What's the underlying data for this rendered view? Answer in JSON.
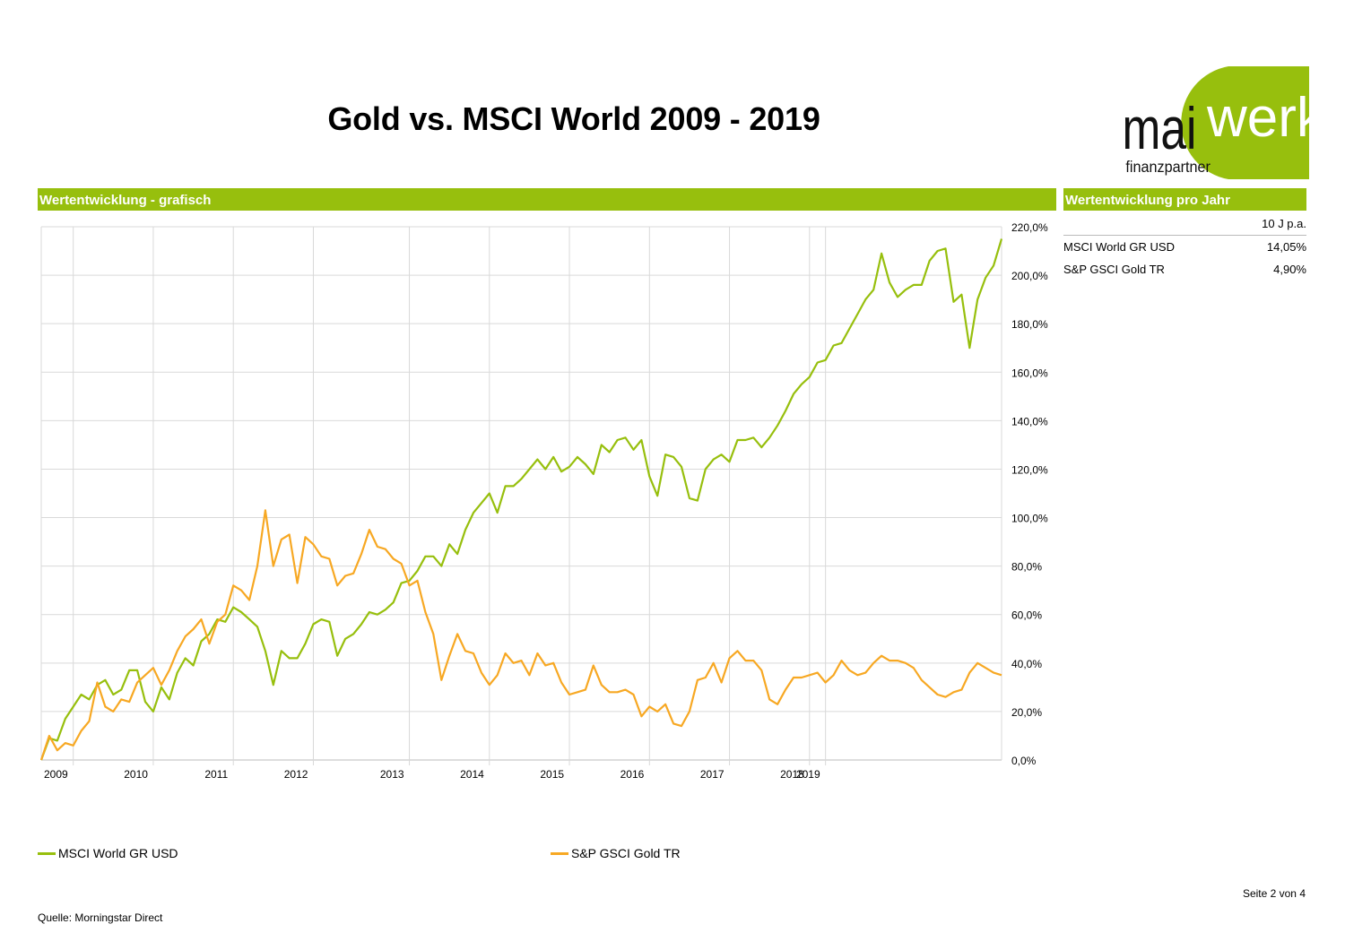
{
  "title": "Gold vs. MSCI World 2009 - 2019",
  "logo": {
    "part1": "mai",
    "part2": "werk",
    "tagline": "finanzpartner",
    "accent": "#97bf0d",
    "text_color": "#111111"
  },
  "section_left": "Wertentwicklung - grafisch",
  "section_right": "Wertentwicklung pro Jahr",
  "perf_table": {
    "column_header": "10 J p.a.",
    "rows": [
      {
        "name": "MSCI World GR USD",
        "value": "14,05%"
      },
      {
        "name": "S&P GSCI Gold TR",
        "value": "4,90%"
      }
    ]
  },
  "legend": {
    "msci": "MSCI World GR USD",
    "gold": "S&P GSCI Gold TR"
  },
  "page_number": "Seite 2 von 4",
  "source": "Quelle: Morningstar Direct",
  "colors": {
    "msci": "#97bf0d",
    "gold": "#f7a823",
    "grid": "#d9d9d9",
    "bar": "#97bf0d"
  },
  "chart_data": {
    "type": "line",
    "x_unit": "month index from 2009-02 (0) to 2019-05 (123)",
    "x_start": "2009-02",
    "x_end": "2019-05",
    "year_ticks": [
      {
        "label": "2009",
        "x": 4
      },
      {
        "label": "2010",
        "x": 14
      },
      {
        "label": "2011",
        "x": 24
      },
      {
        "label": "2012",
        "x": 34
      },
      {
        "label": "2013",
        "x": 46
      },
      {
        "label": "2014",
        "x": 56
      },
      {
        "label": "2015",
        "x": 66
      },
      {
        "label": "2016",
        "x": 76
      },
      {
        "label": "2017",
        "x": 86
      },
      {
        "label": "2018",
        "x": 96
      },
      {
        "label": "2019",
        "x": 98
      }
    ],
    "ylim": [
      0,
      220
    ],
    "y_ticks": [
      "0,0%",
      "20,0%",
      "40,0%",
      "60,0%",
      "80,0%",
      "100,0%",
      "120,0%",
      "140,0%",
      "160,0%",
      "180,0%",
      "200,0%",
      "220,0%"
    ],
    "grid": true,
    "legend_position": "bottom",
    "series": [
      {
        "name": "MSCI World GR USD",
        "values": [
          0,
          9,
          8,
          17,
          22,
          27,
          25,
          31,
          33,
          27,
          29,
          37,
          37,
          24,
          20,
          30,
          25,
          36,
          42,
          39,
          49,
          52,
          58,
          57,
          63,
          61,
          58,
          55,
          45,
          31,
          45,
          42,
          42,
          48,
          56,
          58,
          57,
          43,
          50,
          52,
          56,
          61,
          60,
          62,
          65,
          73,
          74,
          78,
          84,
          84,
          80,
          89,
          85,
          95,
          102,
          106,
          110,
          102,
          113,
          113,
          116,
          120,
          124,
          120,
          125,
          119,
          121,
          125,
          122,
          118,
          130,
          127,
          132,
          133,
          128,
          132,
          117,
          109,
          126,
          125,
          121,
          108,
          107,
          120,
          124,
          126,
          123,
          132,
          132,
          133,
          129,
          133,
          138,
          144,
          151,
          155,
          158,
          164,
          165,
          171,
          172,
          178,
          184,
          190,
          194,
          209,
          197,
          191,
          194,
          196,
          196,
          206,
          210,
          211,
          189,
          192,
          170,
          190,
          199,
          204,
          215
        ]
      },
      {
        "name": "S&P GSCI Gold TR",
        "values": [
          0,
          10,
          4,
          7,
          6,
          12,
          16,
          32,
          22,
          20,
          25,
          24,
          32,
          35,
          38,
          31,
          37,
          45,
          51,
          54,
          58,
          48,
          57,
          60,
          72,
          70,
          66,
          80,
          103,
          80,
          91,
          93,
          73,
          92,
          89,
          84,
          83,
          72,
          76,
          77,
          85,
          95,
          88,
          87,
          83,
          81,
          72,
          74,
          61,
          52,
          33,
          43,
          52,
          45,
          44,
          36,
          31,
          35,
          44,
          40,
          41,
          35,
          44,
          39,
          40,
          32,
          27,
          28,
          29,
          39,
          31,
          28,
          28,
          29,
          27,
          18,
          22,
          20,
          23,
          15,
          14,
          20,
          33,
          34,
          40,
          32,
          42,
          45,
          41,
          41,
          37,
          25,
          23,
          29,
          34,
          34,
          35,
          36,
          32,
          35,
          41,
          37,
          35,
          36,
          40,
          43,
          41,
          41,
          40,
          38,
          33,
          30,
          27,
          26,
          28,
          29,
          36,
          40,
          38,
          36,
          35
        ]
      }
    ]
  }
}
